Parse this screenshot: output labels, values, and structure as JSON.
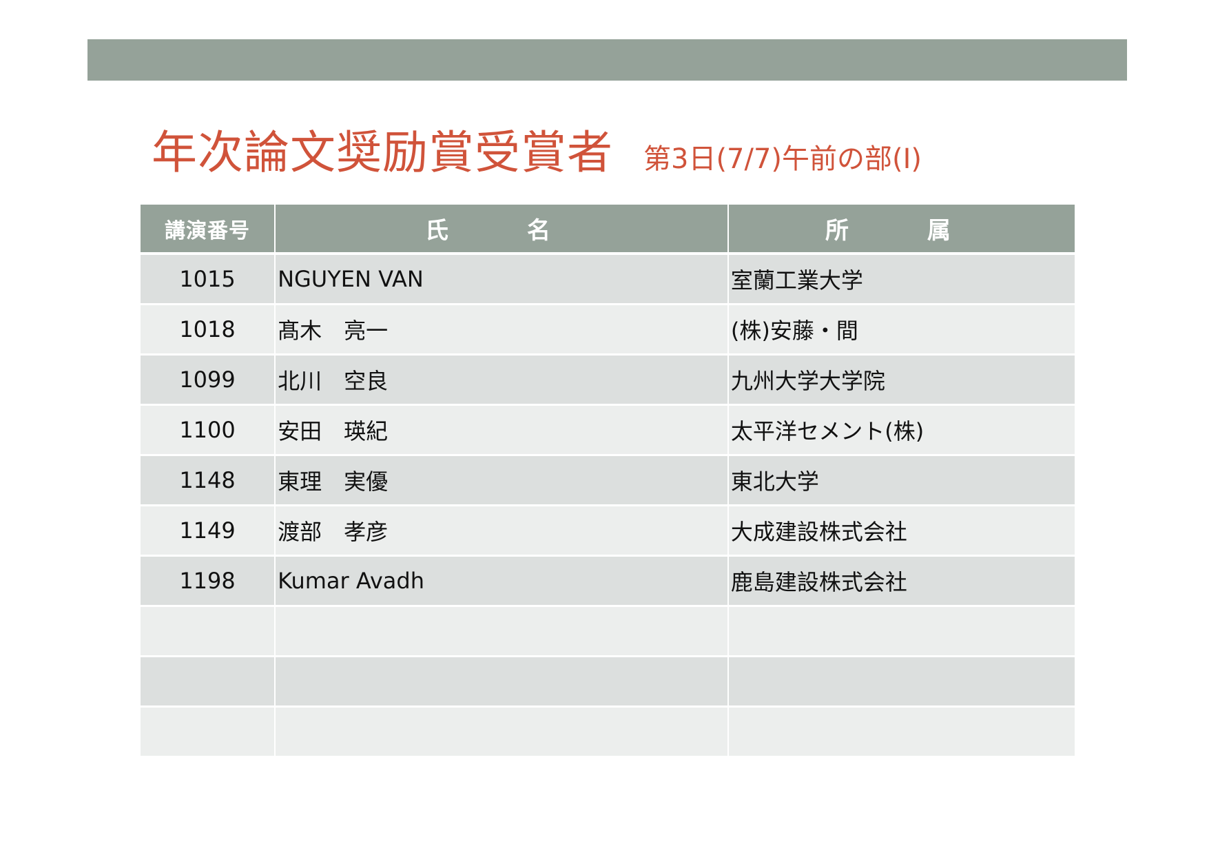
{
  "title": "年次論文奨励賞受賞者",
  "subtitle": "第3日(7/7)午前の部(Ⅰ)",
  "colors": {
    "bar": "#95A299",
    "title": "#D0533A",
    "row_odd": "#DCDFDE",
    "row_even": "#ECEEED"
  },
  "table": {
    "headers": [
      "講演番号",
      "氏　名",
      "所　属"
    ],
    "rows": [
      {
        "number": "1015",
        "name": "NGUYEN VAN",
        "affiliation": "室蘭工業大学"
      },
      {
        "number": "1018",
        "name": "髙木　亮一",
        "affiliation": "(株)安藤・間"
      },
      {
        "number": "1099",
        "name": "北川　空良",
        "affiliation": "九州大学大学院"
      },
      {
        "number": "1100",
        "name": "安田　瑛紀",
        "affiliation": "太平洋セメント(株)"
      },
      {
        "number": "1148",
        "name": "東理　実優",
        "affiliation": "東北大学"
      },
      {
        "number": "1149",
        "name": "渡部　孝彦",
        "affiliation": "大成建設株式会社"
      },
      {
        "number": "1198",
        "name": "Kumar Avadh",
        "affiliation": "鹿島建設株式会社"
      },
      {
        "number": "",
        "name": "",
        "affiliation": ""
      },
      {
        "number": "",
        "name": "",
        "affiliation": ""
      },
      {
        "number": "",
        "name": "",
        "affiliation": ""
      }
    ]
  }
}
